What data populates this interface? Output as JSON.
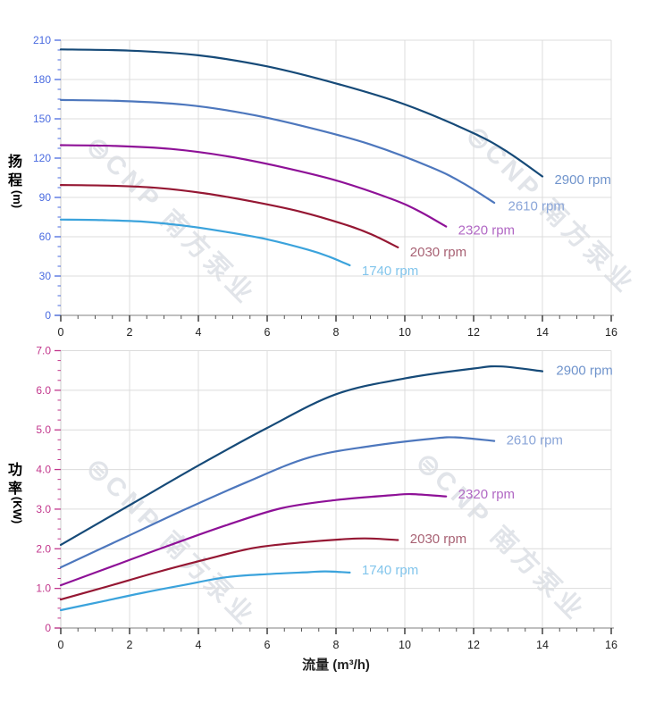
{
  "watermark": {
    "logo_glyph": "⊜",
    "text": "CNP 南方泵业"
  },
  "xlabel": "流量 (m³/h)",
  "chart_data": [
    {
      "id": "head",
      "type": "line",
      "ylabel_chars": [
        "扬",
        "程"
      ],
      "ylabel_unit": "(m)",
      "title_color": "#2d4fd2",
      "tick_color": "#4a6be0",
      "ylim": [
        0,
        210
      ],
      "yticks": [
        0,
        30,
        60,
        90,
        120,
        150,
        180,
        210
      ],
      "y_minor_step": 7.5,
      "y_decimals": 0,
      "xlim": [
        0,
        16
      ],
      "xticks": [
        0,
        2,
        4,
        6,
        8,
        10,
        12,
        14,
        16
      ],
      "x_minor_step": 0.5,
      "grid": true,
      "legend_position": "end-of-line labels",
      "series": [
        {
          "name": "2900",
          "label": "2900 rpm",
          "color": "#164a78",
          "label_color": "#7094cc",
          "points": [
            [
              0,
              203
            ],
            [
              2,
              202
            ],
            [
              4,
              198.5
            ],
            [
              6,
              190
            ],
            [
              8,
              177
            ],
            [
              10,
              161
            ],
            [
              12,
              139
            ],
            [
              13,
              124.5
            ],
            [
              14,
              106
            ]
          ],
          "label_at": [
            14.35,
            103.5
          ]
        },
        {
          "name": "2610",
          "label": "2610 rpm",
          "color": "#4d77bd",
          "label_color": "#8aa5d8",
          "points": [
            [
              0,
              164.4
            ],
            [
              1.8,
              163.6
            ],
            [
              3.6,
              160.8
            ],
            [
              5.4,
              153.9
            ],
            [
              7.2,
              143.4
            ],
            [
              9,
              130.4
            ],
            [
              10.8,
              112.6
            ],
            [
              11.7,
              100.8
            ],
            [
              12.6,
              85.9
            ]
          ],
          "label_at": [
            13.0,
            83.5
          ]
        },
        {
          "name": "2320",
          "label": "2320 rpm",
          "color": "#8e1197",
          "label_color": "#b168c4",
          "points": [
            [
              0,
              129.9
            ],
            [
              1.6,
              129.3
            ],
            [
              3.2,
              127
            ],
            [
              4.8,
              121.6
            ],
            [
              6.4,
              113.3
            ],
            [
              8,
              103
            ],
            [
              9.6,
              89
            ],
            [
              10.4,
              79.7
            ],
            [
              11.2,
              67.8
            ]
          ],
          "label_at": [
            11.55,
            65.0
          ]
        },
        {
          "name": "2030",
          "label": "2030 rpm",
          "color": "#951733",
          "label_color": "#a86274",
          "points": [
            [
              0,
              99.5
            ],
            [
              1.4,
              99
            ],
            [
              2.8,
              97.3
            ],
            [
              4.2,
              93.1
            ],
            [
              5.6,
              86.7
            ],
            [
              7,
              78.9
            ],
            [
              8.4,
              68.1
            ],
            [
              9.1,
              61
            ],
            [
              9.8,
              51.9
            ]
          ],
          "label_at": [
            10.15,
            48.5
          ]
        },
        {
          "name": "1740",
          "label": "1740 rpm",
          "color": "#3ba3dc",
          "label_color": "#82c5ec",
          "points": [
            [
              0,
              73.1
            ],
            [
              1.2,
              72.7
            ],
            [
              2.4,
              71.5
            ],
            [
              3.6,
              68.4
            ],
            [
              4.8,
              63.7
            ],
            [
              6,
              58
            ],
            [
              7.2,
              50
            ],
            [
              7.8,
              44.8
            ],
            [
              8.4,
              38.2
            ]
          ],
          "label_at": [
            8.75,
            34.0
          ]
        }
      ]
    },
    {
      "id": "power",
      "type": "line",
      "ylabel_chars": [
        "功",
        "率"
      ],
      "ylabel_unit": "(KW)",
      "title_color": "#bd1a72",
      "tick_color": "#c2368c",
      "ylim": [
        0,
        7
      ],
      "yticks": [
        0,
        1,
        2,
        3,
        4,
        5,
        6,
        7
      ],
      "y_minor_step": 0.25,
      "y_decimals": 1,
      "xlim": [
        0,
        16
      ],
      "xticks": [
        0,
        2,
        4,
        6,
        8,
        10,
        12,
        14,
        16
      ],
      "x_minor_step": 0.5,
      "grid": true,
      "legend_position": "end-of-line labels",
      "series": [
        {
          "name": "2900",
          "label": "2900 rpm",
          "color": "#164a78",
          "label_color": "#7094cc",
          "points": [
            [
              0,
              2.1
            ],
            [
              2,
              3.1
            ],
            [
              4,
              4.1
            ],
            [
              6,
              5.05
            ],
            [
              8,
              5.9
            ],
            [
              10,
              6.3
            ],
            [
              12,
              6.55
            ],
            [
              12.8,
              6.6
            ],
            [
              14,
              6.48
            ]
          ],
          "label_at": [
            14.4,
            6.5
          ]
        },
        {
          "name": "2610",
          "label": "2610 rpm",
          "color": "#4d77bd",
          "label_color": "#8aa5d8",
          "points": [
            [
              0,
              1.53
            ],
            [
              1.8,
              2.26
            ],
            [
              3.6,
              2.99
            ],
            [
              5.4,
              3.68
            ],
            [
              7.2,
              4.3
            ],
            [
              9,
              4.59
            ],
            [
              10.8,
              4.78
            ],
            [
              11.5,
              4.81
            ],
            [
              12.6,
              4.72
            ]
          ],
          "label_at": [
            12.95,
            4.74
          ]
        },
        {
          "name": "2320",
          "label": "2320 rpm",
          "color": "#8e1197",
          "label_color": "#b168c4",
          "points": [
            [
              0,
              1.08
            ],
            [
              1.6,
              1.59
            ],
            [
              3.2,
              2.1
            ],
            [
              4.8,
              2.59
            ],
            [
              6.4,
              3.02
            ],
            [
              8,
              3.23
            ],
            [
              9.6,
              3.35
            ],
            [
              10.2,
              3.38
            ],
            [
              11.2,
              3.32
            ]
          ],
          "label_at": [
            11.55,
            3.38
          ]
        },
        {
          "name": "2030",
          "label": "2030 rpm",
          "color": "#951733",
          "label_color": "#a86274",
          "points": [
            [
              0,
              0.72
            ],
            [
              1.4,
              1.06
            ],
            [
              2.8,
              1.41
            ],
            [
              4.2,
              1.73
            ],
            [
              5.6,
              2.02
            ],
            [
              7,
              2.16
            ],
            [
              8.4,
              2.25
            ],
            [
              9,
              2.26
            ],
            [
              9.8,
              2.22
            ]
          ],
          "label_at": [
            10.15,
            2.25
          ]
        },
        {
          "name": "1740",
          "label": "1740 rpm",
          "color": "#3ba3dc",
          "label_color": "#82c5ec",
          "points": [
            [
              0,
              0.45
            ],
            [
              1.2,
              0.67
            ],
            [
              2.4,
              0.89
            ],
            [
              3.6,
              1.09
            ],
            [
              4.8,
              1.28
            ],
            [
              6,
              1.36
            ],
            [
              7.2,
              1.41
            ],
            [
              7.7,
              1.43
            ],
            [
              8.4,
              1.4
            ]
          ],
          "label_at": [
            8.75,
            1.46
          ]
        }
      ]
    }
  ]
}
